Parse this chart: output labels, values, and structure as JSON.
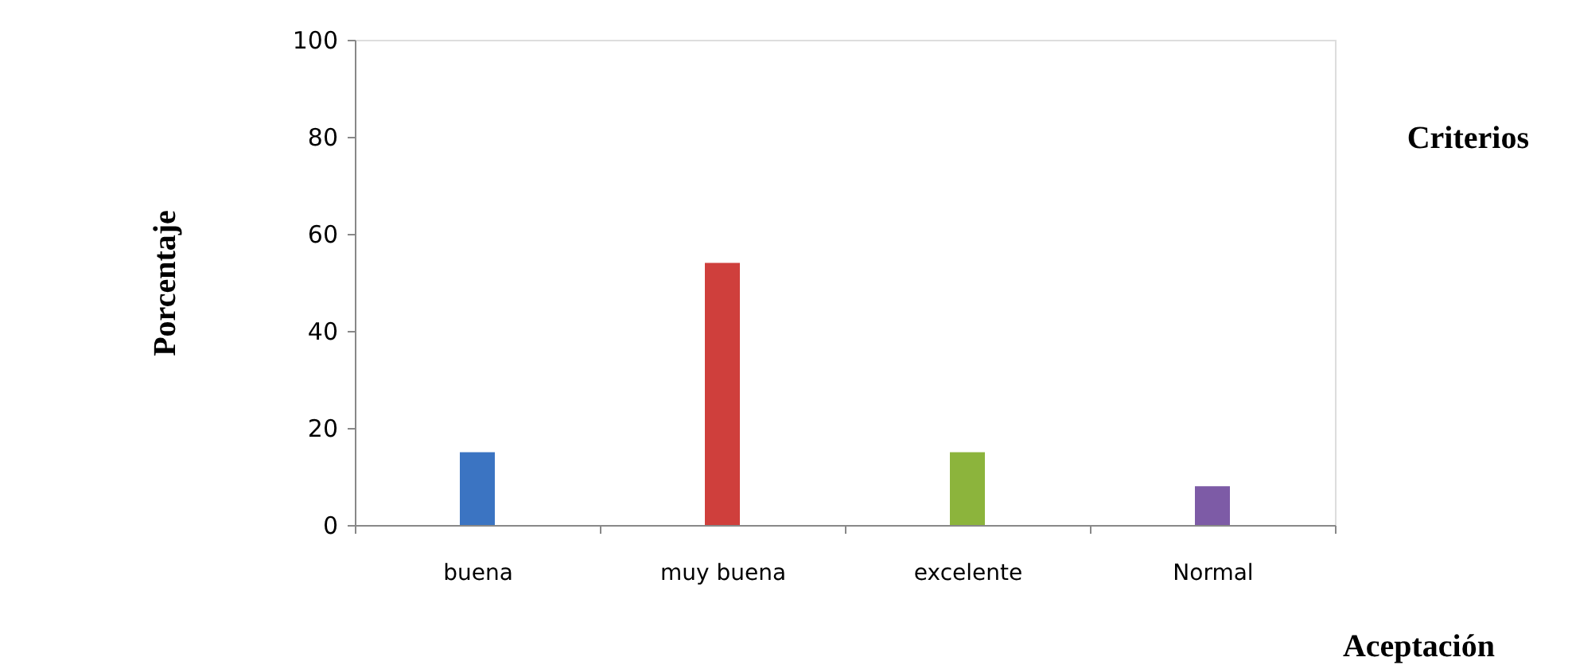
{
  "chart_data": {
    "type": "bar",
    "categories": [
      "buena",
      "muy buena",
      "excelente",
      "Normal"
    ],
    "values": [
      15,
      54,
      15,
      8
    ],
    "colors": [
      "#3b74c2",
      "#cf3f3c",
      "#8cb43c",
      "#7d5ba6"
    ],
    "xlabel": "Aceptación",
    "ylabel": "Porcentaje",
    "annotations": [
      "Criterios"
    ],
    "ylim": [
      0,
      100
    ],
    "yticks": [
      0,
      20,
      40,
      60,
      80,
      100
    ],
    "grid": false
  }
}
